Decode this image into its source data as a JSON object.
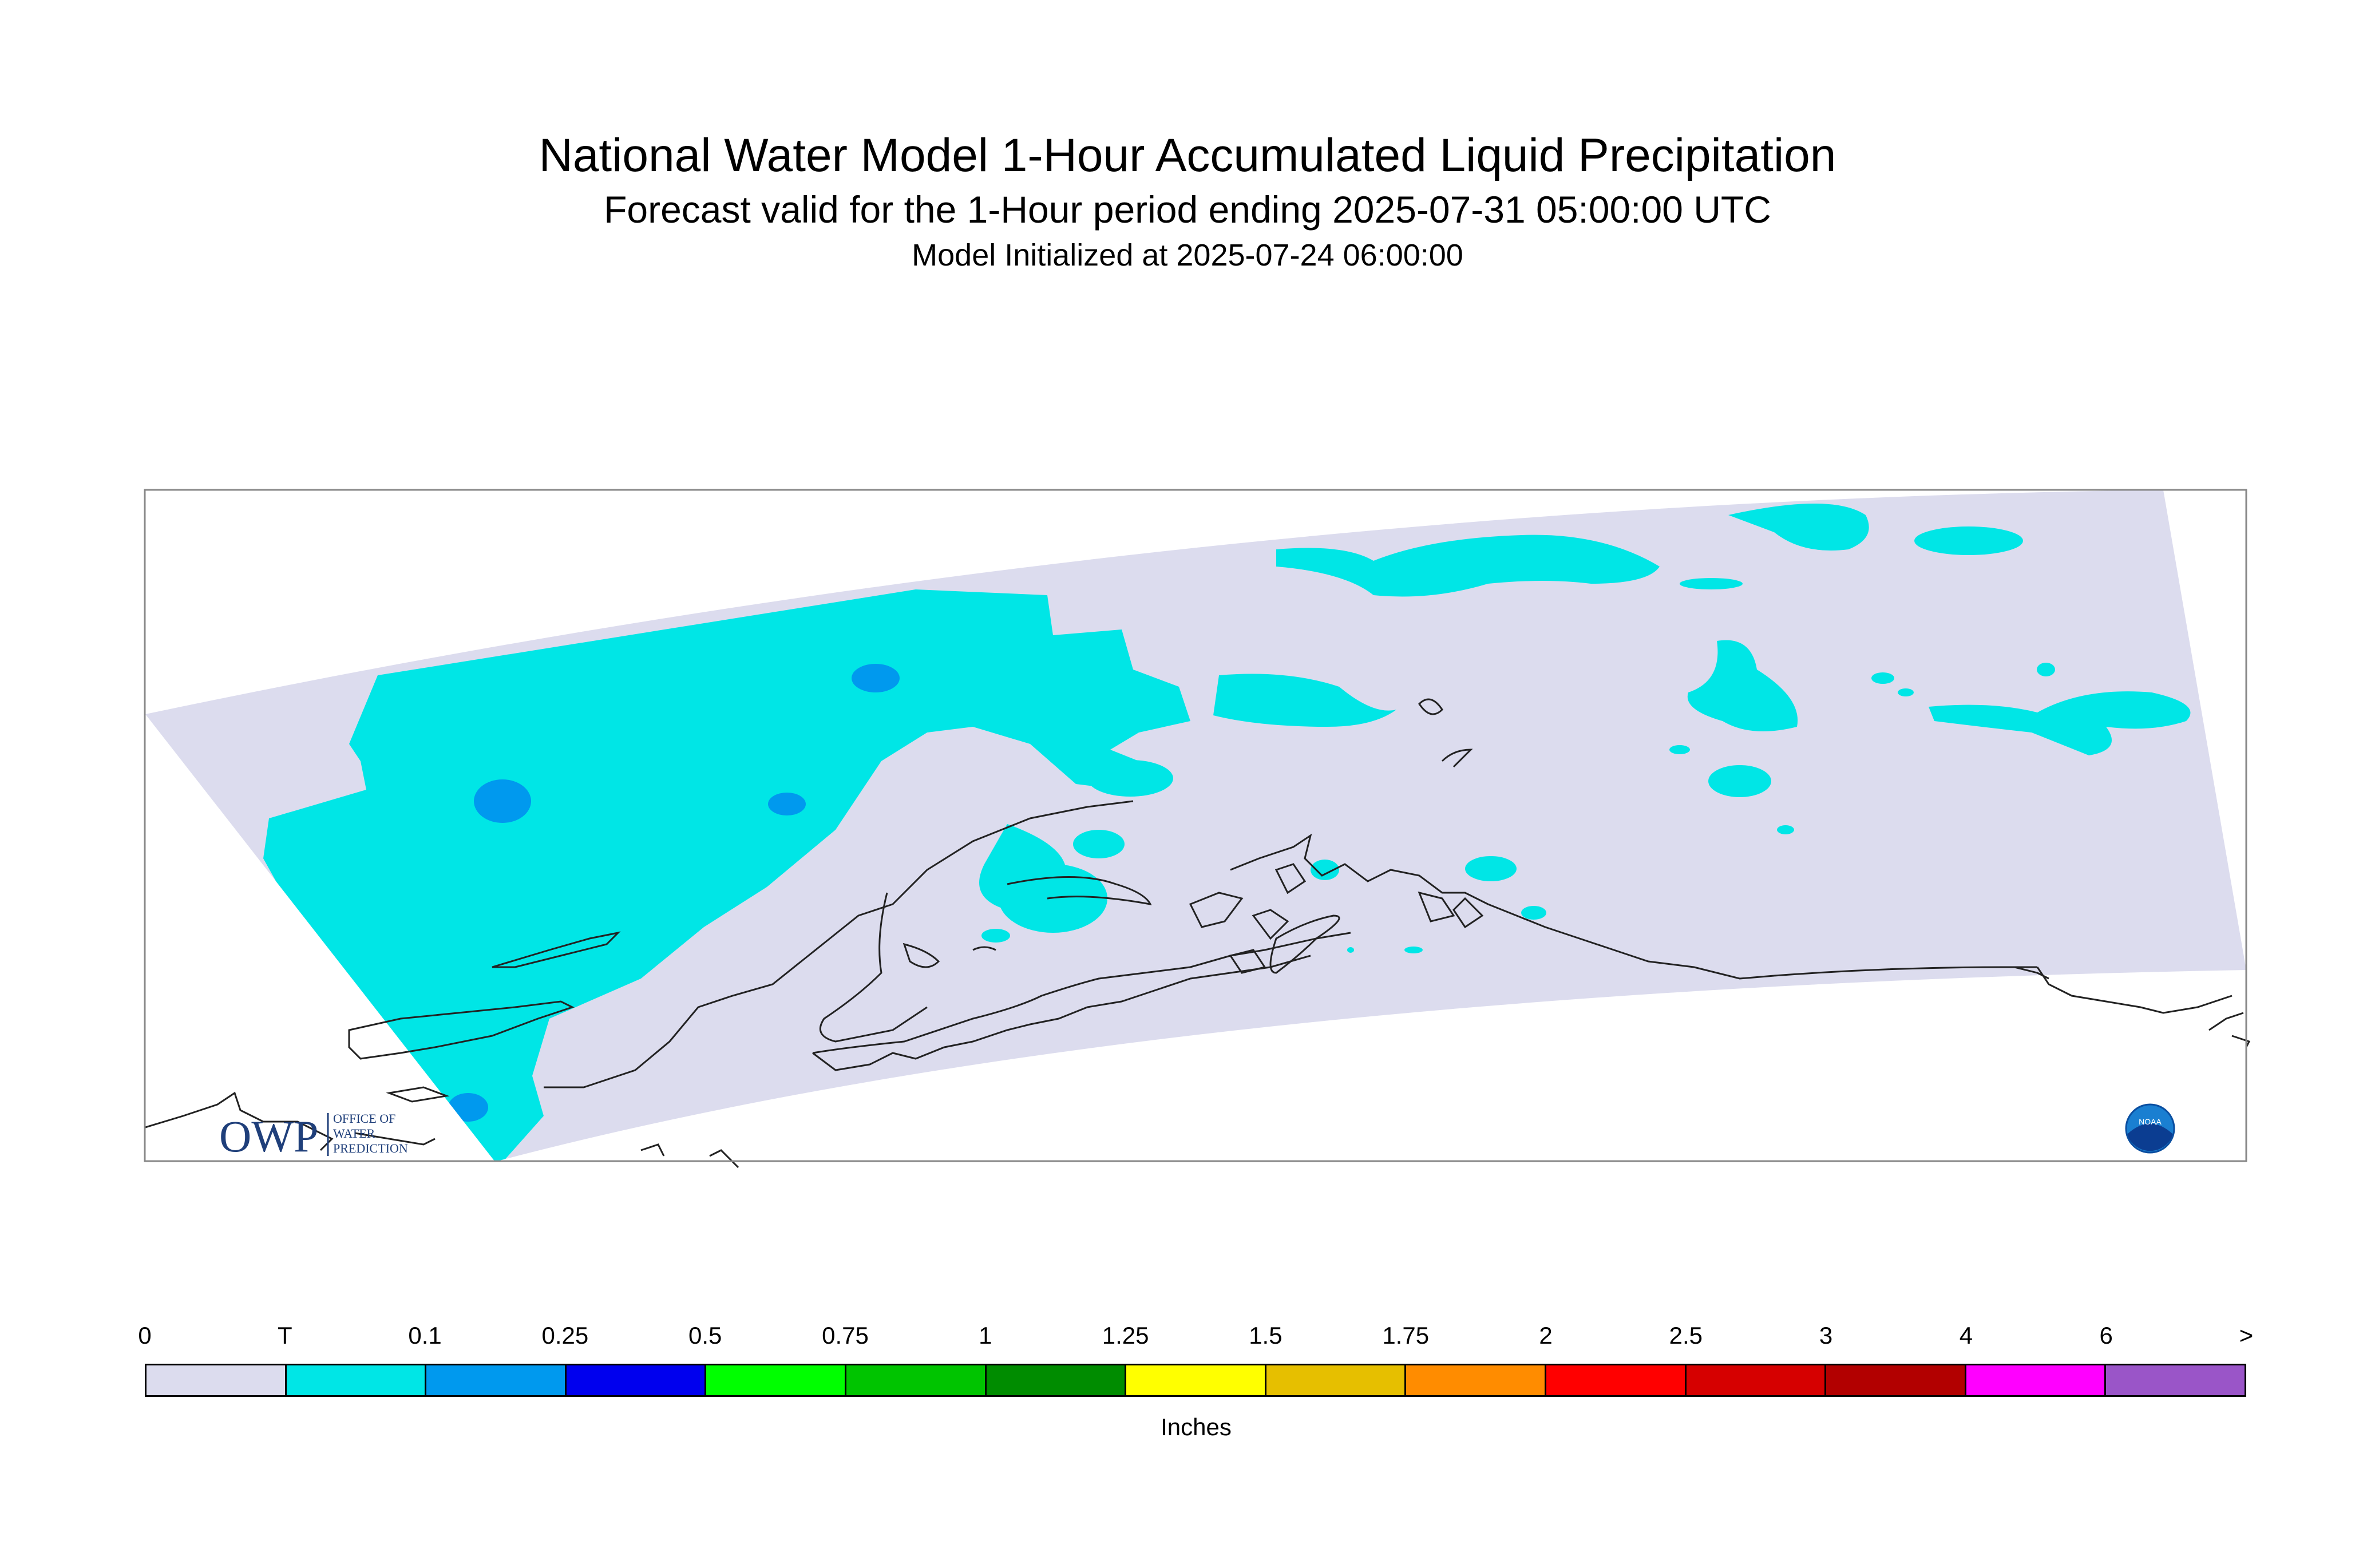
{
  "header": {
    "title": "National Water Model 1-Hour Accumulated Liquid Precipitation",
    "subtitle": "Forecast valid for the 1-Hour period ending 2025-07-31 05:00:00 UTC",
    "init": "Model Initialized at 2025-07-24 06:00:00"
  },
  "logos": {
    "owp_text": "OWP",
    "owp_small_1": "OFFICE OF",
    "owp_small_2": "WATER",
    "owp_small_3": "PREDICTION",
    "noaa_text": "NOAA"
  },
  "legend": {
    "units": "Inches",
    "ticks": [
      "0",
      "T",
      "0.1",
      "0.25",
      "0.5",
      "0.75",
      "1",
      "1.25",
      "1.5",
      "1.75",
      "2",
      "2.5",
      "3",
      "4",
      "6",
      ">"
    ],
    "colors": [
      "#dcdcee",
      "#00e6e6",
      "#0099ee",
      "#0000ee",
      "#00ff00",
      "#00c400",
      "#008c00",
      "#ffff00",
      "#e6bf00",
      "#ff8c00",
      "#ff0000",
      "#d60000",
      "#b20000",
      "#ff00ff",
      "#9a55c8"
    ]
  },
  "map": {
    "domain_color": "#dcdcee",
    "trace_color": "#00e6e6",
    "light_color": "#0099ee"
  }
}
